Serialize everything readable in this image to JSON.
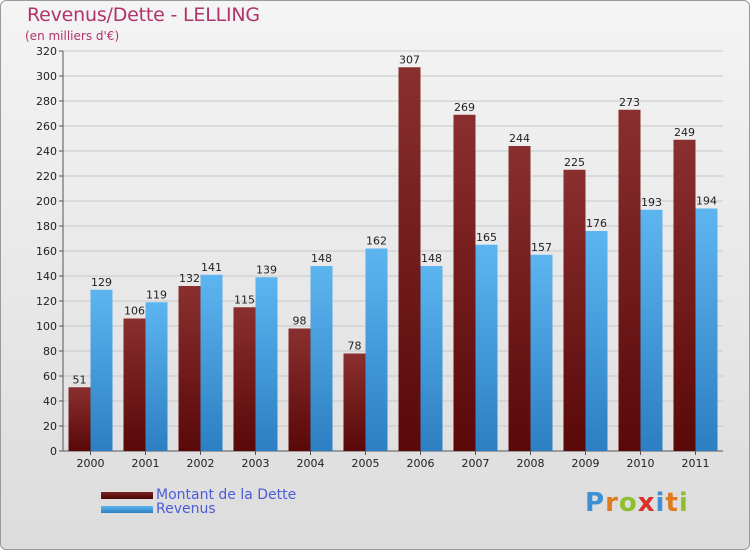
{
  "title": "Revenus/Dette - LELLING",
  "subtitle": "(en milliers d'€)",
  "colors": {
    "dette": "#6e1a1a",
    "revenus": "#3d9be0",
    "title": "#b0336b",
    "legend": "#4a5cd6"
  },
  "legend": {
    "dette_label": "Montant de la Dette",
    "revenus_label": "Revenus"
  },
  "logo": {
    "text": "Proxiti"
  },
  "chart_data": {
    "type": "bar",
    "title": "Revenus/Dette - LELLING",
    "ylabel": "(en milliers d'€)",
    "xlabel": "",
    "ylim": [
      0,
      320
    ],
    "yticks": [
      0,
      20,
      40,
      60,
      80,
      100,
      120,
      140,
      160,
      180,
      200,
      220,
      240,
      260,
      280,
      300,
      320
    ],
    "grid": true,
    "legend_position": "bottom-left",
    "categories": [
      "2000",
      "2001",
      "2002",
      "2003",
      "2004",
      "2005",
      "2006",
      "2007",
      "2008",
      "2009",
      "2010",
      "2011"
    ],
    "series": [
      {
        "name": "Montant de la Dette",
        "values": [
          51,
          106,
          132,
          115,
          98,
          78,
          307,
          269,
          244,
          225,
          273,
          249
        ]
      },
      {
        "name": "Revenus",
        "values": [
          129,
          119,
          141,
          139,
          148,
          162,
          148,
          165,
          157,
          176,
          193,
          194
        ]
      }
    ]
  }
}
